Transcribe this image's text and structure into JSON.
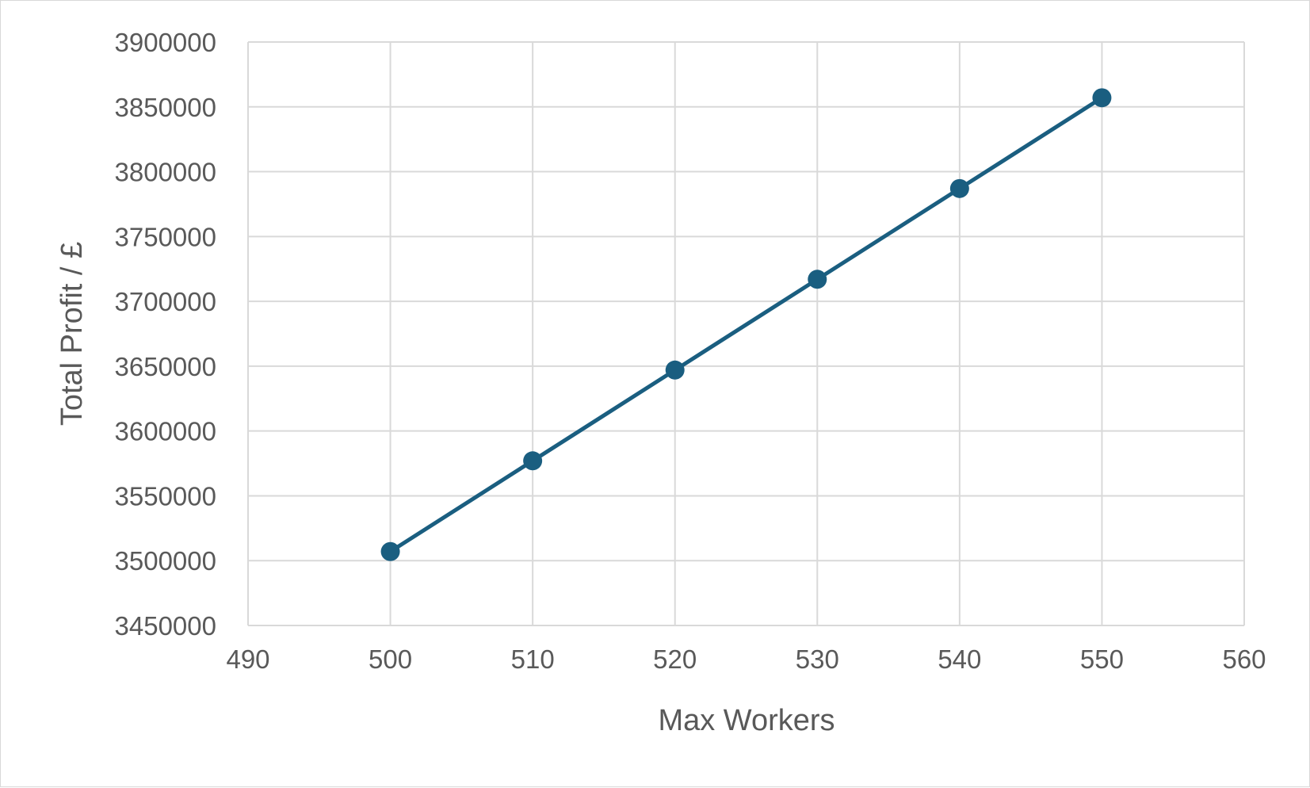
{
  "chart_data": {
    "type": "scatter",
    "title": "",
    "xlabel": "Max Workers",
    "ylabel": "Total Profit / £",
    "xlim": [
      490,
      560
    ],
    "ylim": [
      3450000,
      3900000
    ],
    "x_ticks": [
      490,
      500,
      510,
      520,
      530,
      540,
      550,
      560
    ],
    "y_ticks": [
      3450000,
      3500000,
      3550000,
      3600000,
      3650000,
      3700000,
      3750000,
      3800000,
      3850000,
      3900000
    ],
    "grid": true,
    "legend": "none",
    "series": [
      {
        "x": [
          500,
          510,
          520,
          530,
          540,
          550
        ],
        "y": [
          3507000,
          3577000,
          3647000,
          3717000,
          3787000,
          3857000
        ],
        "color": "#1a5e80",
        "markers": true,
        "line": true
      }
    ]
  }
}
